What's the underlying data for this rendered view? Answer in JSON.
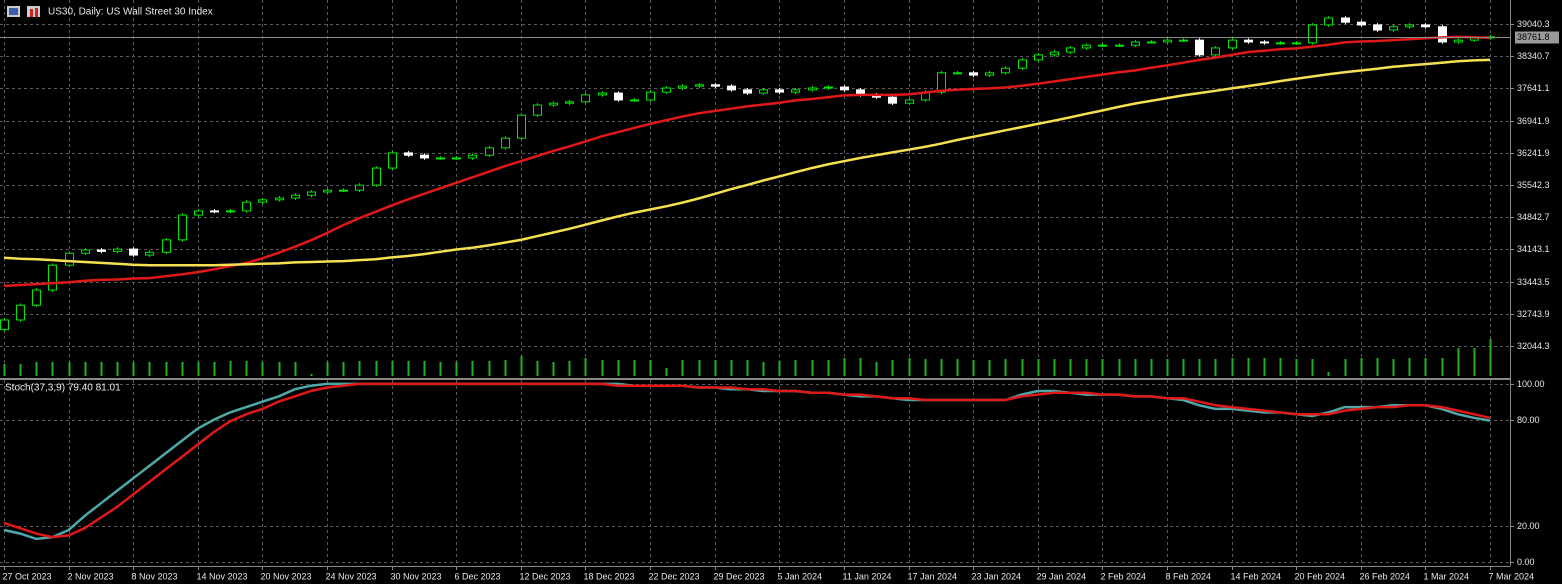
{
  "chart_data": [
    {
      "type": "candlestick",
      "title": "US30, Daily:  US Wall Street 30 Index",
      "categories": [
        "27 Oct 2023",
        null,
        null,
        null,
        "2 Nov 2023",
        null,
        null,
        null,
        "8 Nov 2023",
        null,
        null,
        null,
        "14 Nov 2023",
        null,
        null,
        null,
        "20 Nov 2023",
        null,
        null,
        null,
        "24 Nov 2023",
        null,
        null,
        null,
        "30 Nov 2023",
        null,
        null,
        null,
        "6 Dec 2023",
        null,
        null,
        null,
        "12 Dec 2023",
        null,
        null,
        null,
        "18 Dec 2023",
        null,
        null,
        null,
        "22 Dec 2023",
        null,
        null,
        null,
        "29 Dec 2023",
        null,
        null,
        null,
        "5 Jan 2024",
        null,
        null,
        null,
        "11 Jan 2024",
        null,
        null,
        null,
        "17 Jan 2024",
        null,
        null,
        null,
        "23 Jan 2024",
        null,
        null,
        null,
        "29 Jan 2024",
        null,
        null,
        null,
        "2 Feb 2024",
        null,
        null,
        null,
        "8 Feb 2024",
        null,
        null,
        null,
        "14 Feb 2024",
        null,
        null,
        null,
        "20 Feb 2024",
        null,
        null,
        null,
        "26 Feb 2024",
        null,
        null,
        null,
        "1 Mar 2024",
        null,
        null,
        null,
        "7 Mar 2024"
      ],
      "open": [
        32400,
        32610,
        32930,
        33260,
        33800,
        34060,
        34130,
        34100,
        34150,
        34020,
        34080,
        34350,
        34890,
        34980,
        34970,
        34980,
        35170,
        35220,
        35260,
        35320,
        35390,
        35430,
        35430,
        35540,
        35910,
        36240,
        36190,
        36130,
        36130,
        36130,
        36190,
        36350,
        36560,
        37060,
        37280,
        37320,
        37350,
        37500,
        37540,
        37390,
        37390,
        37560,
        37650,
        37690,
        37720,
        37690,
        37610,
        37540,
        37610,
        37560,
        37610,
        37650,
        37670,
        37610,
        37500,
        37450,
        37320,
        37390,
        37560,
        37980,
        37980,
        37930,
        37980,
        38080,
        38260,
        38370,
        38430,
        38520,
        38580,
        38580,
        38580,
        38650,
        38650,
        38690,
        38690,
        38370,
        38520,
        38690,
        38650,
        38630,
        38630,
        38630,
        39020,
        39170,
        39080,
        39020,
        38910,
        38980,
        39020,
        38980,
        38650,
        38690,
        38740
      ],
      "high": [
        32650,
        32970,
        33300,
        33840,
        34100,
        34170,
        34170,
        34190,
        34190,
        34120,
        34390,
        34930,
        35020,
        35020,
        35020,
        35210,
        35260,
        35300,
        35360,
        35430,
        35470,
        35470,
        35580,
        35950,
        36280,
        36280,
        36230,
        36170,
        36170,
        36230,
        36390,
        36600,
        37100,
        37320,
        37360,
        37390,
        37540,
        37580,
        37580,
        37430,
        37600,
        37690,
        37730,
        37760,
        37760,
        37730,
        37650,
        37650,
        37650,
        37650,
        37690,
        37710,
        37710,
        37650,
        37540,
        37490,
        37430,
        37600,
        38020,
        38020,
        38020,
        38020,
        38120,
        38300,
        38410,
        38470,
        38560,
        38620,
        38620,
        38620,
        38690,
        38690,
        38730,
        38730,
        38730,
        38560,
        38730,
        38730,
        38690,
        38670,
        38670,
        39060,
        39210,
        39210,
        39120,
        39060,
        39020,
        39060,
        39060,
        39020,
        38730,
        38780,
        38802
      ],
      "low": [
        32360,
        32570,
        32890,
        33220,
        33760,
        34020,
        34060,
        34060,
        33980,
        33980,
        34040,
        34310,
        34850,
        34930,
        34930,
        34940,
        35130,
        35180,
        35220,
        35280,
        35350,
        35390,
        35390,
        35500,
        35870,
        36150,
        36090,
        36090,
        36090,
        36090,
        36150,
        36310,
        36520,
        37020,
        37240,
        37280,
        37310,
        37460,
        37350,
        37350,
        37350,
        37520,
        37610,
        37650,
        37650,
        37570,
        37500,
        37500,
        37520,
        37520,
        37570,
        37610,
        37570,
        37460,
        37410,
        37280,
        37280,
        37350,
        37520,
        37940,
        37890,
        37890,
        37940,
        38040,
        38220,
        38330,
        38390,
        38480,
        38540,
        38540,
        38540,
        38610,
        38610,
        38650,
        38330,
        38330,
        38480,
        38610,
        38590,
        38590,
        38590,
        38590,
        38980,
        39040,
        38980,
        38870,
        38870,
        38940,
        38940,
        38610,
        38610,
        38650,
        38700
      ],
      "close": [
        32610,
        32930,
        33260,
        33800,
        34060,
        34130,
        34100,
        34150,
        34020,
        34080,
        34350,
        34890,
        34980,
        34970,
        34980,
        35170,
        35220,
        35260,
        35320,
        35390,
        35430,
        35430,
        35540,
        35910,
        36240,
        36190,
        36130,
        36130,
        36130,
        36190,
        36350,
        36560,
        37060,
        37280,
        37320,
        37350,
        37500,
        37540,
        37390,
        37390,
        37560,
        37650,
        37690,
        37720,
        37690,
        37610,
        37540,
        37610,
        37560,
        37610,
        37650,
        37670,
        37610,
        37500,
        37450,
        37320,
        37390,
        37560,
        37980,
        37980,
        37930,
        37980,
        38080,
        38260,
        38370,
        38430,
        38520,
        38580,
        38580,
        38580,
        38650,
        38650,
        38690,
        38690,
        38370,
        38520,
        38690,
        38650,
        38630,
        38630,
        38630,
        39020,
        39170,
        39080,
        39020,
        38910,
        38980,
        39020,
        38980,
        38650,
        38690,
        38740,
        38761.8
      ],
      "up_color": "#00e600",
      "down_color": "#ffffff",
      "series": [
        {
          "color": "#e01818",
          "values": [
            33350,
            33370,
            33390,
            33410,
            33430,
            33460,
            33480,
            33490,
            33510,
            33520,
            33560,
            33600,
            33650,
            33710,
            33780,
            33850,
            33950,
            34070,
            34200,
            34340,
            34500,
            34670,
            34820,
            34960,
            35100,
            35230,
            35350,
            35470,
            35590,
            35710,
            35830,
            35950,
            36060,
            36170,
            36280,
            36380,
            36490,
            36600,
            36690,
            36780,
            36870,
            36950,
            37030,
            37100,
            37150,
            37200,
            37250,
            37290,
            37330,
            37380,
            37410,
            37450,
            37490,
            37500,
            37500,
            37500,
            37510,
            37550,
            37590,
            37610,
            37630,
            37640,
            37660,
            37700,
            37740,
            37790,
            37840,
            37890,
            37940,
            37990,
            38030,
            38090,
            38140,
            38200,
            38260,
            38310,
            38370,
            38430,
            38460,
            38490,
            38510,
            38550,
            38590,
            38640,
            38660,
            38670,
            38690,
            38710,
            38730,
            38750,
            38760,
            38750,
            38740
          ]
        },
        {
          "color": "#f5e050",
          "values": [
            33960,
            33940,
            33930,
            33910,
            33890,
            33870,
            33850,
            33830,
            33810,
            33800,
            33800,
            33800,
            33800,
            33800,
            33810,
            33820,
            33830,
            33840,
            33860,
            33870,
            33880,
            33890,
            33910,
            33930,
            33970,
            34000,
            34040,
            34090,
            34140,
            34180,
            34230,
            34290,
            34350,
            34430,
            34510,
            34590,
            34680,
            34770,
            34860,
            34940,
            35010,
            35080,
            35160,
            35250,
            35350,
            35450,
            35540,
            35640,
            35730,
            35820,
            35910,
            35990,
            36060,
            36130,
            36190,
            36250,
            36310,
            36370,
            36440,
            36520,
            36590,
            36660,
            36730,
            36800,
            36870,
            36940,
            37010,
            37090,
            37160,
            37240,
            37310,
            37370,
            37430,
            37490,
            37540,
            37590,
            37640,
            37690,
            37740,
            37800,
            37850,
            37900,
            37950,
            37990,
            38030,
            38070,
            38110,
            38140,
            38170,
            38200,
            38230,
            38250,
            38260
          ]
        }
      ],
      "volume": {
        "color": "#22b022",
        "values": [
          12,
          12,
          14,
          14,
          14,
          14,
          14,
          14,
          14,
          14,
          14,
          14,
          14,
          14,
          15,
          15,
          14,
          14,
          14,
          2,
          14,
          14,
          15,
          15,
          15,
          15,
          15,
          14,
          14,
          15,
          15,
          16,
          20,
          15,
          14,
          15,
          18,
          16,
          16,
          16,
          16,
          8,
          16,
          16,
          16,
          16,
          16,
          14,
          15,
          16,
          16,
          16,
          18,
          18,
          14,
          16,
          18,
          17,
          17,
          17,
          16,
          16,
          17,
          17,
          17,
          17,
          17,
          17,
          17,
          17,
          17,
          17,
          17,
          17,
          17,
          17,
          18,
          18,
          18,
          18,
          17,
          17,
          4,
          17,
          18,
          18,
          17,
          18,
          18,
          18,
          28,
          28,
          37
        ]
      },
      "last_price": 38761.8,
      "ylim": [
        31349.1,
        39561.7
      ],
      "yticks": [
        39040.3,
        38340.7,
        37641.1,
        36941.9,
        36241.9,
        35542.3,
        34842.7,
        34143.1,
        33443.5,
        32743.9,
        32044.3
      ],
      "grid": true
    },
    {
      "type": "line",
      "title": "Stoch(37,3,9) 79.40 81.01",
      "series": [
        {
          "color": "#4fa8a8",
          "values": [
            18,
            16,
            13,
            14,
            18,
            26,
            33,
            40,
            47,
            54,
            61,
            68,
            75,
            80,
            84,
            87,
            90,
            93,
            97,
            99,
            100,
            100,
            100,
            100,
            100,
            100,
            100,
            100,
            100,
            100,
            100,
            100,
            100,
            100,
            100,
            100,
            100,
            100,
            100,
            99,
            99,
            99,
            99,
            98,
            98,
            97,
            97,
            96,
            96,
            96,
            95,
            95,
            94,
            93,
            93,
            92,
            91,
            91,
            91,
            91,
            91,
            91,
            91,
            94,
            96,
            96,
            95,
            94,
            94,
            94,
            93,
            93,
            92,
            91,
            88,
            86,
            86,
            85,
            84,
            84,
            83,
            82,
            84,
            87,
            87,
            87,
            88,
            88,
            88,
            86,
            83,
            81,
            79.4
          ]
        },
        {
          "color": "#e01818",
          "values": [
            22,
            19,
            16,
            14,
            15,
            19,
            25,
            31,
            38,
            45,
            52,
            59,
            66,
            73,
            79,
            83,
            86,
            90,
            93,
            96,
            98,
            99,
            100,
            100,
            100,
            100,
            100,
            100,
            100,
            100,
            100,
            100,
            100,
            100,
            100,
            100,
            100,
            100,
            99,
            99,
            99,
            99,
            99,
            98,
            98,
            98,
            97,
            97,
            96,
            96,
            95,
            95,
            94,
            94,
            93,
            92,
            92,
            91,
            91,
            91,
            91,
            91,
            91,
            93,
            94,
            95,
            95,
            95,
            94,
            94,
            93,
            93,
            92,
            92,
            90,
            88,
            87,
            86,
            85,
            84,
            83,
            83,
            83,
            85,
            86,
            87,
            87,
            88,
            88,
            87,
            85,
            83,
            81.01
          ]
        }
      ],
      "ylim": [
        -2.2,
        102.2
      ],
      "yticks": [
        {
          "value": 100,
          "label": "100.00"
        },
        {
          "value": 80,
          "label": "80.00"
        },
        {
          "value": 20,
          "label": "20.00"
        },
        {
          "value": 0,
          "label": "0.00"
        }
      ],
      "grid": true
    }
  ]
}
